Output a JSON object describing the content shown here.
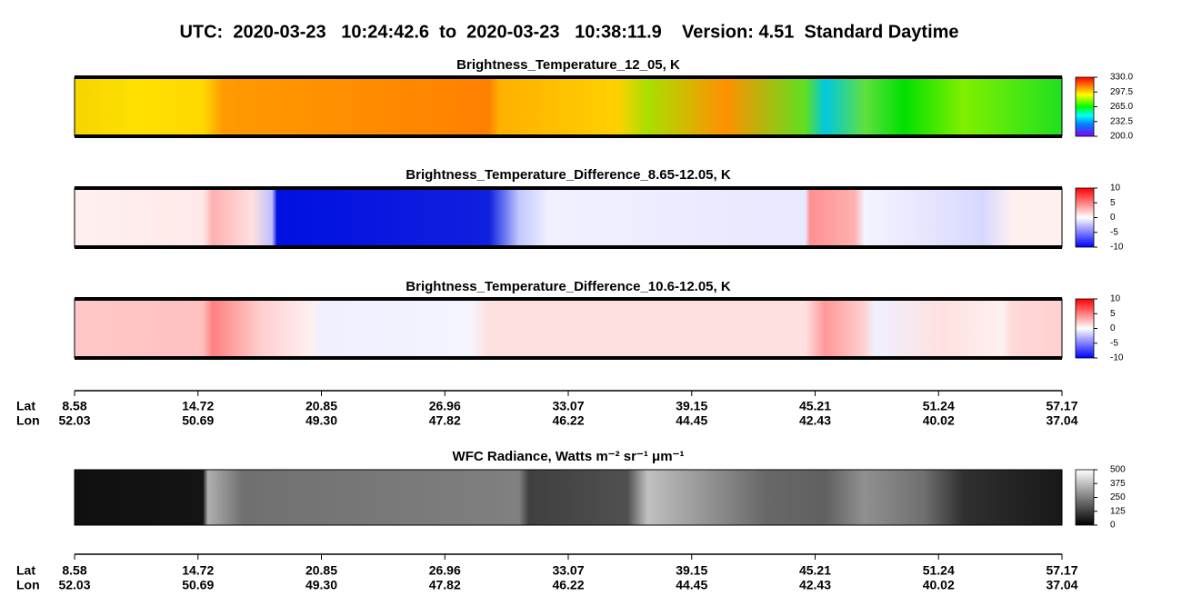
{
  "title": "UTC:  2020-03-23   10:24:42.6  to  2020-03-23   10:38:11.9    Version: 4.51  Standard Daytime",
  "chart_data": [
    {
      "type": "heatmap",
      "title": "Brightness_Temperature_12_05, K",
      "clim": [
        200,
        330
      ],
      "cticks": [
        {
          "value": 200,
          "label": "200.0"
        },
        232.5,
        {
          "value": 265,
          "label": "265.0"
        },
        297.5,
        {
          "value": 330,
          "label": "330.0"
        }
      ]
    },
    {
      "type": "heatmap",
      "title": "Brightness_Temperature_Difference_8.65-12.05, K",
      "clim": [
        -10,
        10
      ],
      "cticks": [
        -10,
        -5,
        0,
        5,
        10
      ]
    },
    {
      "type": "heatmap",
      "title": "Brightness_Temperature_Difference_10.6-12.05, K",
      "clim": [
        -10,
        10
      ],
      "cticks": [
        -10,
        -5,
        0,
        5,
        10
      ]
    },
    {
      "type": "heatmap",
      "title": "WFC Radiance, Watts m⁻² sr⁻¹ μm⁻¹",
      "clim": [
        0,
        500
      ],
      "cticks": [
        0,
        125,
        250,
        375,
        500
      ]
    }
  ],
  "x_axis": {
    "lat_label": "Lat",
    "lon_label": "Lon",
    "lat": [
      8.58,
      14.72,
      20.85,
      26.96,
      33.07,
      39.15,
      45.21,
      51.24,
      57.17
    ],
    "lon": [
      52.03,
      50.69,
      {
        "value": 49.3,
        "label": "49.30"
      },
      47.82,
      46.22,
      44.45,
      42.43,
      40.02,
      37.04
    ]
  }
}
